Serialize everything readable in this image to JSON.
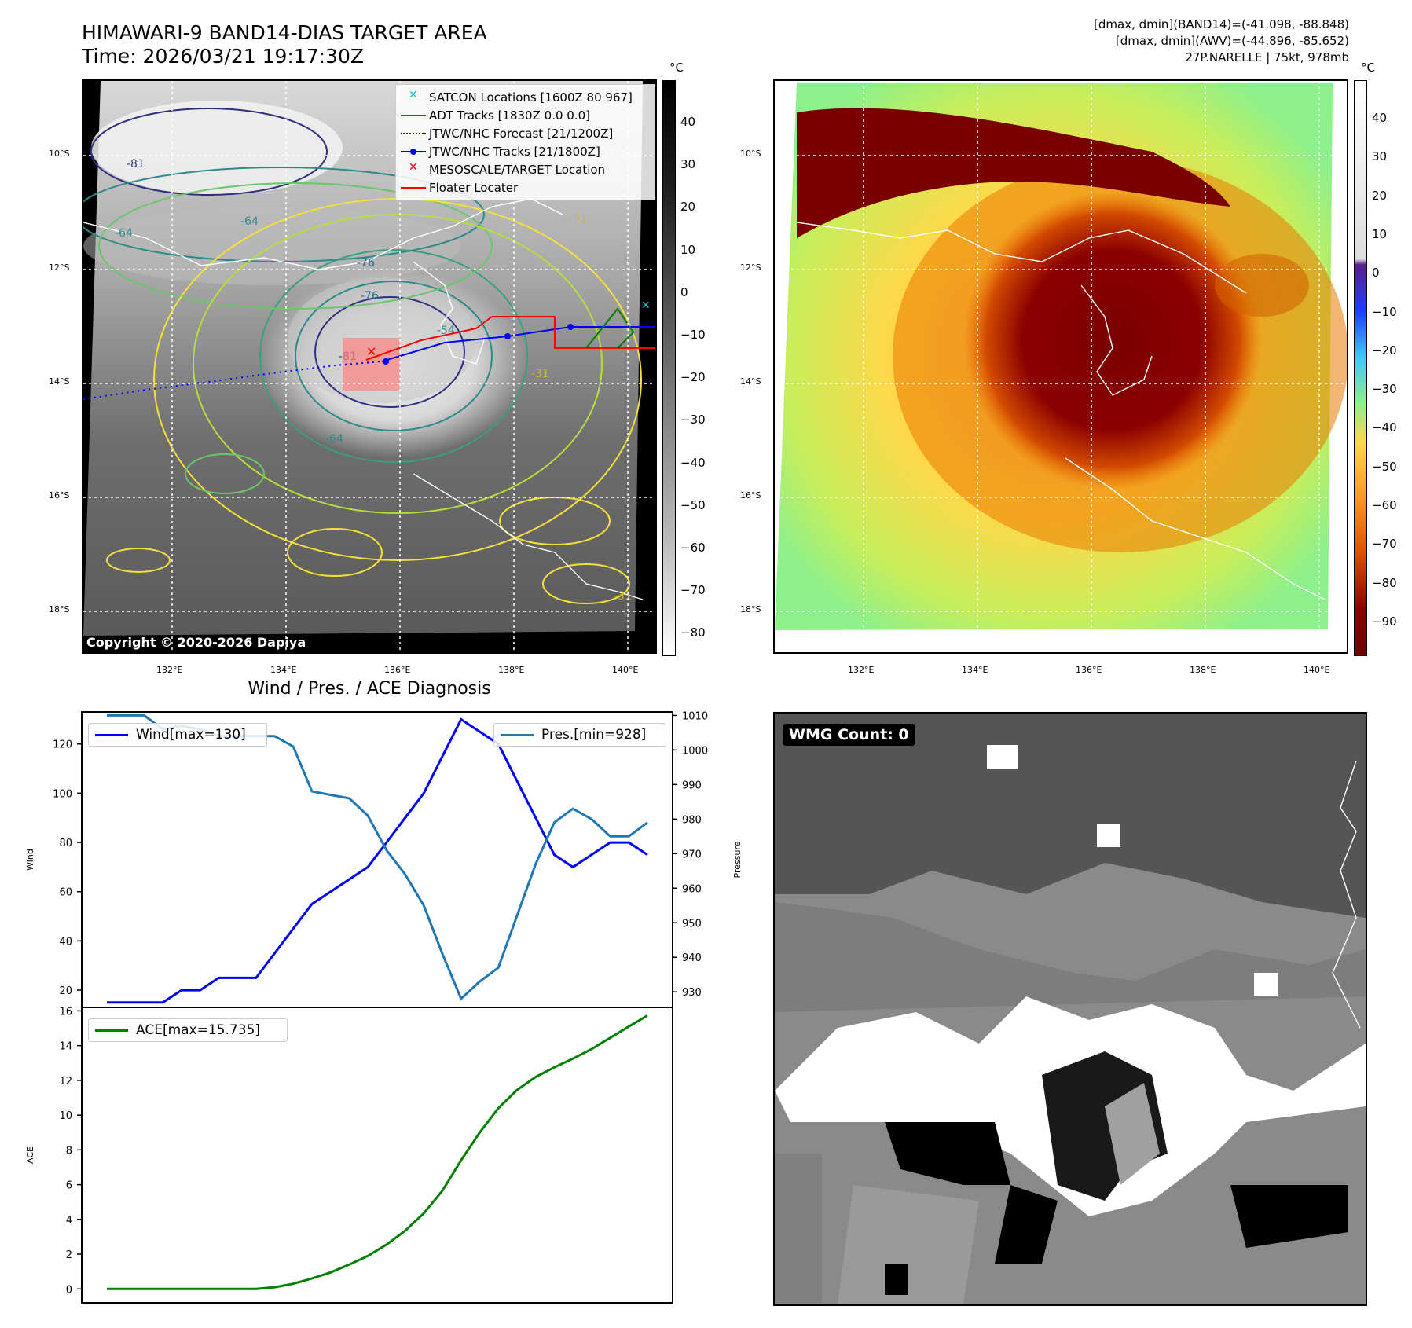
{
  "header": {
    "title": "HIMAWARI-9 BAND14-DIAS TARGET AREA",
    "time": "Time: 2026/03/21 19:17:30Z",
    "dmax_band14": "[dmax, dmin](BAND14)=(-41.098, -88.848)",
    "dmax_awv": "[dmax, dmin](AWV)=(-44.896, -85.652)",
    "storm": "27P.NARELLE | 75kt, 978mb"
  },
  "map": {
    "lat_labels": [
      "10°S",
      "12°S",
      "14°S",
      "16°S",
      "18°S"
    ],
    "lon_labels": [
      "132°E",
      "134°E",
      "136°E",
      "138°E",
      "140°E"
    ],
    "copyright": "Copyright © 2020-2026 Dapiya",
    "contour_labels": [
      "-81",
      "-76",
      "-64",
      "-64",
      "-31",
      "-31",
      "-81",
      "-76",
      "-54",
      "-64",
      "-31"
    ],
    "legend": [
      {
        "label": "SATCON Locations [1600Z 80 967]",
        "color": "#17becf",
        "marker": "x"
      },
      {
        "label": "ADT Tracks [1830Z 0.0 0.0]",
        "color": "#008000",
        "marker": "line"
      },
      {
        "label": "JTWC/NHC Forecast [21/1200Z]",
        "color": "#0000ff",
        "marker": "dotted"
      },
      {
        "label": "JTWC/NHC Tracks [21/1800Z]",
        "color": "#0000ff",
        "marker": "line-dot"
      },
      {
        "label": "MESOSCALE/TARGET Location",
        "color": "#ff0000",
        "marker": "x"
      },
      {
        "label": "Floater Locater",
        "color": "#ff0000",
        "marker": "line"
      }
    ]
  },
  "colorbar_left": {
    "unit": "°C",
    "ticks": [
      "40",
      "30",
      "20",
      "10",
      "0",
      "−10",
      "−20",
      "−30",
      "−40",
      "−50",
      "−60",
      "−70",
      "−80"
    ]
  },
  "colorbar_right": {
    "unit": "°C",
    "ticks": [
      "40",
      "30",
      "20",
      "10",
      "0",
      "−10",
      "−20",
      "−30",
      "−40",
      "−50",
      "−60",
      "−70",
      "−80",
      "−90"
    ]
  },
  "wmg": {
    "label": "WMG Count: 0"
  },
  "colors": {
    "wind": "#0000ff",
    "pres": "#1f77b4",
    "ace": "#008000",
    "track": "#0000ff",
    "target": "#ff0000"
  },
  "chart_data": [
    {
      "type": "line",
      "title": "Wind / Pres. / ACE Diagnosis",
      "xlabel": "",
      "ylabel": "Wind",
      "ylabel_right": "Pressure",
      "y_ticks": [
        "120",
        "100",
        "80",
        "60",
        "40",
        "20"
      ],
      "y_right_ticks": [
        "1010",
        "1000",
        "990",
        "980",
        "970",
        "960",
        "950",
        "940",
        "930"
      ],
      "ylim": [
        13,
        133
      ],
      "ylim_right": [
        925.5,
        1011
      ],
      "series": [
        {
          "name": "Wind[max=130]",
          "axis": "left",
          "values": [
            15,
            15,
            15,
            15,
            20,
            20,
            25,
            25,
            25,
            35,
            45,
            55,
            60,
            65,
            70,
            80,
            90,
            100,
            115,
            130,
            125,
            120,
            105,
            90,
            75,
            70,
            75,
            80,
            80,
            75
          ]
        },
        {
          "name": "Pres.[min=928]",
          "axis": "right",
          "values": [
            1010,
            1010,
            1010,
            1006,
            1007,
            1006,
            1004,
            1004,
            1004,
            1004,
            1001,
            988,
            987,
            986,
            981,
            971,
            964,
            955,
            941,
            928,
            933,
            937,
            952,
            967,
            979,
            983,
            980,
            975,
            975,
            979
          ]
        }
      ]
    },
    {
      "type": "line",
      "ylabel": "ACE",
      "y_ticks": [
        "16",
        "14",
        "12",
        "10",
        "8",
        "6",
        "4",
        "2",
        "0"
      ],
      "ylim": [
        -0.8,
        16.2
      ],
      "series": [
        {
          "name": "ACE[max=15.735]",
          "values": [
            0,
            0,
            0,
            0,
            0,
            0,
            0,
            0,
            0,
            0.1,
            0.3,
            0.6,
            0.95,
            1.4,
            1.9,
            2.55,
            3.35,
            4.35,
            5.65,
            7.4,
            9.0,
            10.4,
            11.45,
            12.2,
            12.75,
            13.25,
            13.8,
            14.45,
            15.1,
            15.735
          ]
        }
      ]
    }
  ]
}
